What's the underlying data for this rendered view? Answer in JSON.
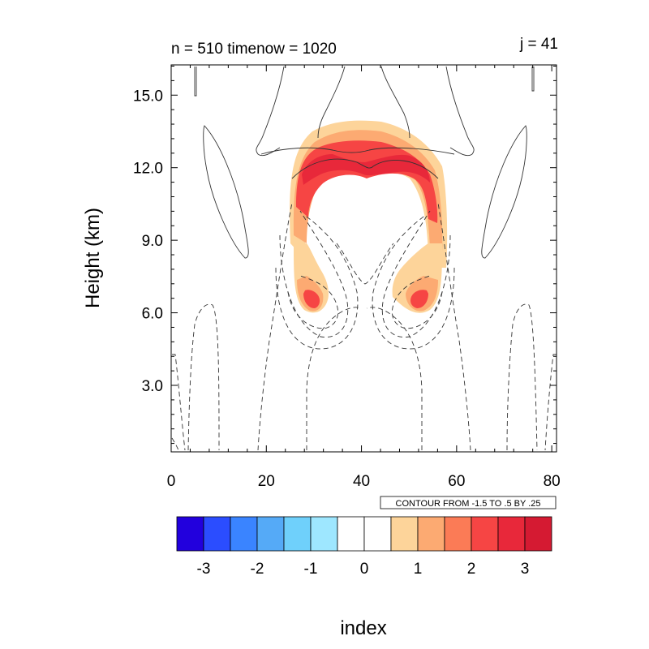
{
  "chart_data": {
    "type": "contour",
    "title_left": "n = 510 timenow = 1020",
    "title_right": "j = 41",
    "ylabel": "Height (km)",
    "xlabel": "index",
    "xlim": [
      0,
      81
    ],
    "ylim": [
      0.25,
      16.25
    ],
    "x_ticks": [
      0,
      20,
      40,
      60,
      80
    ],
    "x_tick_labels": [
      "0",
      "20",
      "40",
      "60",
      "80"
    ],
    "y_ticks": [
      3.0,
      6.0,
      9.0,
      12.0,
      15.0
    ],
    "y_tick_labels": [
      "3.0",
      "6.0",
      "9.0",
      "12.0",
      "15.0"
    ],
    "contour_info": "CONTOUR FROM -1.5 TO .5 BY .25",
    "colorbar": {
      "colors": [
        "#2200dd",
        "#2b4dff",
        "#3a84ff",
        "#55aaf7",
        "#6fd0fb",
        "#9ee7ff",
        "#ffffff",
        "#ffffff",
        "#fdd49a",
        "#fcaa72",
        "#fb7b56",
        "#f64544",
        "#e8283a",
        "#d51a32"
      ],
      "labels": [
        "-3",
        "-2",
        "-1",
        "0",
        "1",
        "2",
        "3"
      ]
    },
    "shaded_features": [
      {
        "name": "upper arc",
        "x_range": [
          24,
          58
        ],
        "y_range": [
          8.5,
          13.8
        ],
        "max_value": 3.5
      },
      {
        "name": "left lobe",
        "x_center": 31,
        "y_center": 6.5,
        "max_value": 2.5
      },
      {
        "name": "right lobe",
        "x_center": 51,
        "y_center": 6.5,
        "max_value": 2.5
      }
    ],
    "line_contours": {
      "solid": "positive values",
      "dashed": "negative values"
    }
  }
}
